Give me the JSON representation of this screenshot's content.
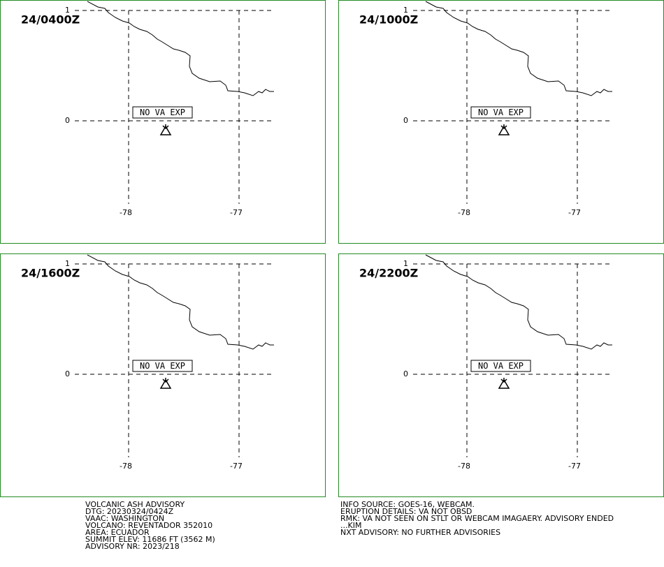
{
  "panels": [
    {
      "time": "24/0400Z",
      "status": "NO VA EXP"
    },
    {
      "time": "24/1000Z",
      "status": "NO VA EXP"
    },
    {
      "time": "24/1600Z",
      "status": "NO VA EXP"
    },
    {
      "time": "24/2200Z",
      "status": "NO VA EXP"
    }
  ],
  "lat_labels": [
    "1",
    "0"
  ],
  "lon_labels": [
    "-78",
    "-77"
  ],
  "advisory_left": [
    "VOLCANIC ASH ADVISORY",
    "DTG: 20230324/0424Z",
    "VAAC: WASHINGTON",
    "VOLCANO: REVENTADOR 352010",
    "AREA: ECUADOR",
    "SUMMIT ELEV: 11686 FT (3562 M)",
    "ADVISORY NR: 2023/218"
  ],
  "advisory_right": [
    "INFO SOURCE: GOES-16, WEBCAM.",
    "ERUPTION DETAILS: VA NOT OBSD",
    "RMK: VA NOT SEEN ON STLT OR WEBCAM IMAGAERY. ADVISORY ENDED",
    "...KIM",
    "NXT ADVISORY: NO FURTHER ADVISORIES"
  ]
}
